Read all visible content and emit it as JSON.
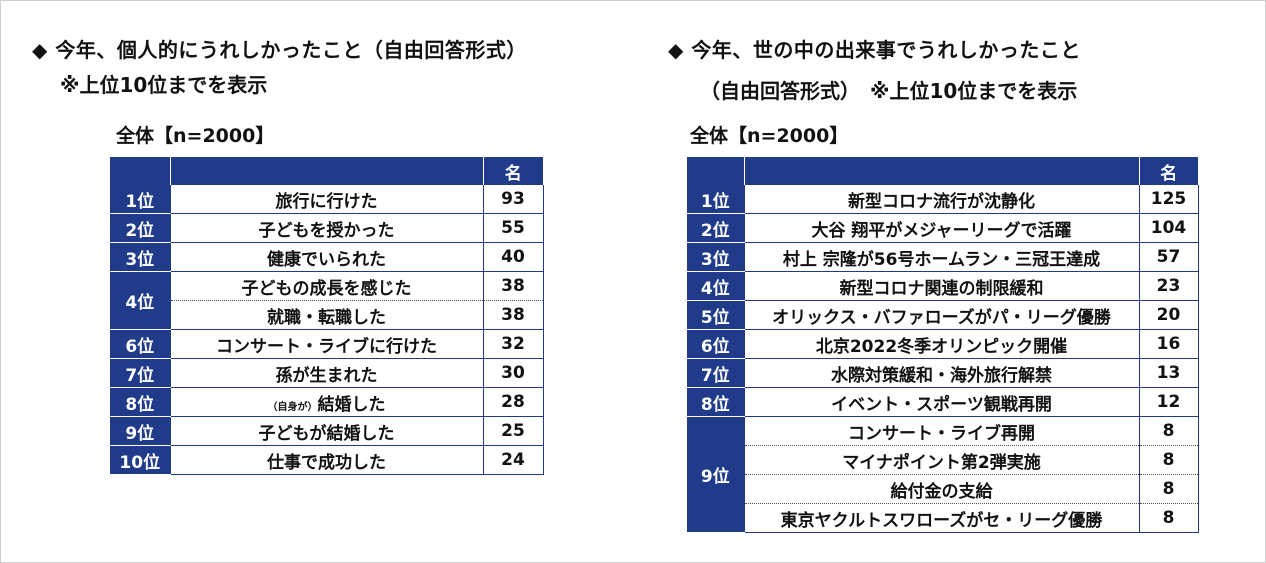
{
  "left": {
    "heading": "◆ 今年、個人的にうれしかったこと（自由回答形式）",
    "note": "※上位10位までを表示",
    "total": "全体【n=2000】",
    "col_header": "名",
    "rows": [
      {
        "rank": "1位",
        "item": "旅行に行けた",
        "count": "93"
      },
      {
        "rank": "2位",
        "item": "子どもを授かった",
        "count": "55"
      },
      {
        "rank": "3位",
        "item": "健康でいられた",
        "count": "40"
      },
      {
        "rank": "4位",
        "item": "子どもの成長を感じた",
        "count": "38"
      },
      {
        "rank": "",
        "item": "就職・転職した",
        "count": "38"
      },
      {
        "rank": "6位",
        "item": "コンサート・ライブに行けた",
        "count": "32"
      },
      {
        "rank": "7位",
        "item": "孫が生まれた",
        "count": "30"
      },
      {
        "rank": "8位",
        "item_prefix": "（自身が）",
        "item": "結婚した",
        "count": "28"
      },
      {
        "rank": "9位",
        "item": "子どもが結婚した",
        "count": "25"
      },
      {
        "rank": "10位",
        "item": "仕事で成功した",
        "count": "24"
      }
    ]
  },
  "right": {
    "heading": "◆ 今年、世の中の出来事でうれしかったこと",
    "heading2": "（自由回答形式）　※上位10位までを表示",
    "total": "全体【n=2000】",
    "col_header": "名",
    "rows": [
      {
        "rank": "1位",
        "item": "新型コロナ流行が沈静化",
        "count": "125"
      },
      {
        "rank": "2位",
        "item": "大谷 翔平がメジャーリーグで活躍",
        "count": "104"
      },
      {
        "rank": "3位",
        "item": "村上 宗隆が56号ホームラン・三冠王達成",
        "count": "57"
      },
      {
        "rank": "4位",
        "item": "新型コロナ関連の制限緩和",
        "count": "23"
      },
      {
        "rank": "5位",
        "item": "オリックス・バファローズがパ・リーグ優勝",
        "count": "20"
      },
      {
        "rank": "6位",
        "item": "北京2022冬季オリンピック開催",
        "count": "16"
      },
      {
        "rank": "7位",
        "item": "水際対策緩和・海外旅行解禁",
        "count": "13"
      },
      {
        "rank": "8位",
        "item": "イベント・スポーツ観戦再開",
        "count": "12"
      },
      {
        "rank": "9位",
        "item": "コンサート・ライブ再開",
        "count": "8"
      },
      {
        "rank": "",
        "item": "マイナポイント第2弾実施",
        "count": "8"
      },
      {
        "rank": "",
        "item": "給付金の支給",
        "count": "8"
      },
      {
        "rank": "",
        "item": "東京ヤクルトスワローズがセ・リーグ優勝",
        "count": "8"
      }
    ]
  }
}
